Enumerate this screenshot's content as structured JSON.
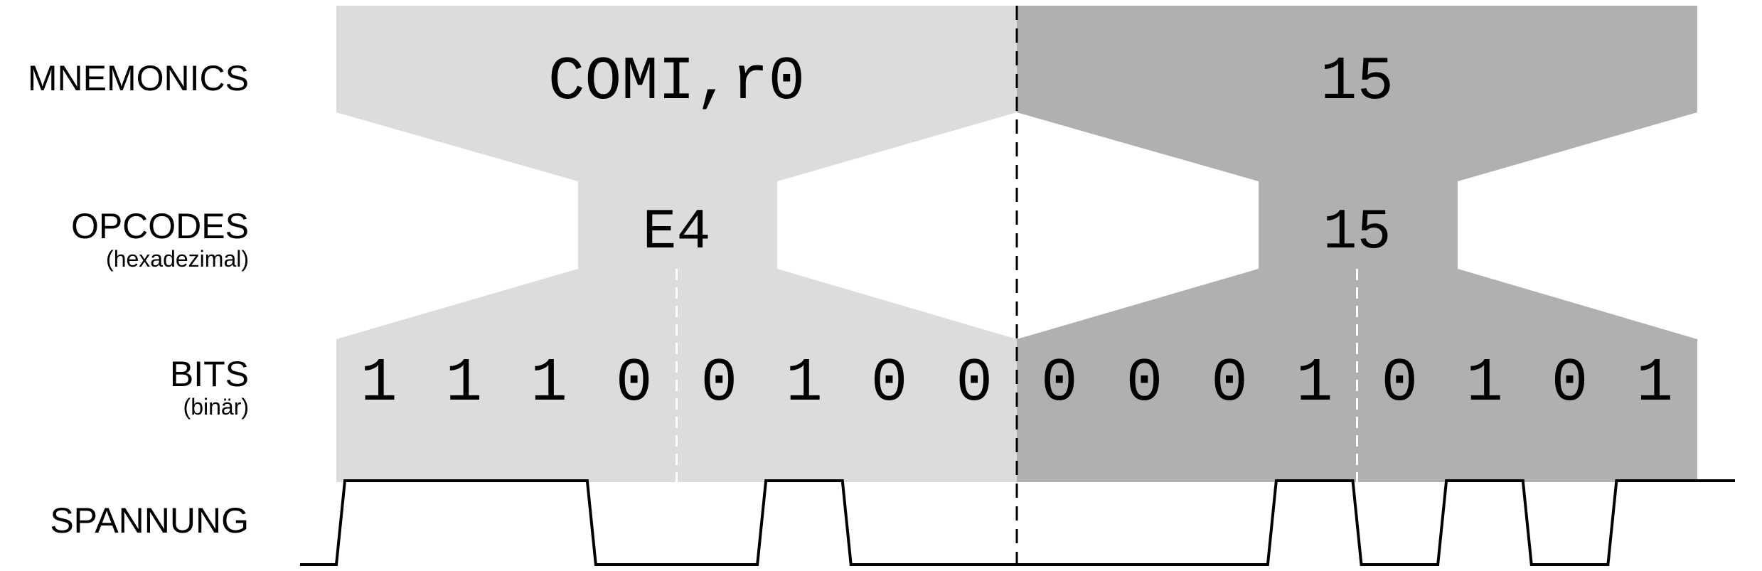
{
  "labels": {
    "mnemonics": "MNEMONICS",
    "opcodes": "OPCODES",
    "opcodes_sub": "(hexadezimal)",
    "bits": "BITS",
    "bits_sub": "(binär)",
    "spannung": "SPANNUNG"
  },
  "colors": {
    "light_fill": "#dcdcdc",
    "dark_fill": "#b0b0b0",
    "line": "#000000"
  },
  "instructions": [
    {
      "mnemonic": "COMI,r0",
      "opcode": "E4",
      "bits": [
        "1",
        "1",
        "1",
        "0",
        "0",
        "1",
        "0",
        "0"
      ],
      "shade": "light"
    },
    {
      "mnemonic": "15",
      "opcode": "15",
      "bits": [
        "0",
        "0",
        "0",
        "1",
        "0",
        "1",
        "0",
        "1"
      ],
      "shade": "dark"
    }
  ]
}
